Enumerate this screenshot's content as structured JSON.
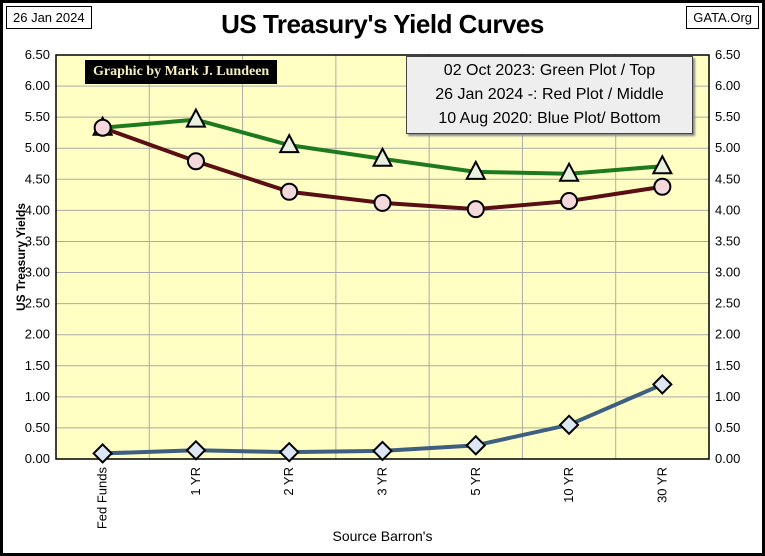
{
  "header": {
    "date": "26 Jan 2024",
    "site": "GATA.Org",
    "title": "US Treasury's Yield Curves"
  },
  "credit": "Graphic by Mark J. Lundeen",
  "chart_data": {
    "type": "line",
    "title": "US Treasury's Yield Curves",
    "xlabel": "Source Barron's",
    "ylabel": "US Treasury Yields",
    "ylim": [
      0,
      6.5
    ],
    "yticks": [
      "0.00",
      "0.50",
      "1.00",
      "1.50",
      "2.00",
      "2.50",
      "3.00",
      "3.50",
      "4.00",
      "4.50",
      "5.00",
      "5.50",
      "6.00",
      "6.50"
    ],
    "categories": [
      "Fed Funds",
      "1 YR",
      "2 YR",
      "3 YR",
      "5 YR",
      "10 YR",
      "30 YR"
    ],
    "legend": [
      "02 Oct 2023: Green Plot / Top",
      "26 Jan 2024 -: Red Plot / Middle",
      "10 Aug 2020: Blue Plot/ Bottom"
    ],
    "legend_position": "top-right",
    "grid": true,
    "series": [
      {
        "name": "02 Oct 2023",
        "color": "#1e7a1e",
        "marker": "triangle",
        "values": [
          5.33,
          5.46,
          5.05,
          4.83,
          4.62,
          4.59,
          4.71
        ]
      },
      {
        "name": "26 Jan 2024",
        "color": "#5a0f14",
        "marker": "circle",
        "values": [
          5.33,
          4.79,
          4.3,
          4.12,
          4.02,
          4.15,
          4.38
        ]
      },
      {
        "name": "10 Aug 2020",
        "color": "#3e5f80",
        "marker": "diamond",
        "values": [
          0.09,
          0.14,
          0.11,
          0.13,
          0.22,
          0.55,
          1.2
        ]
      }
    ]
  }
}
